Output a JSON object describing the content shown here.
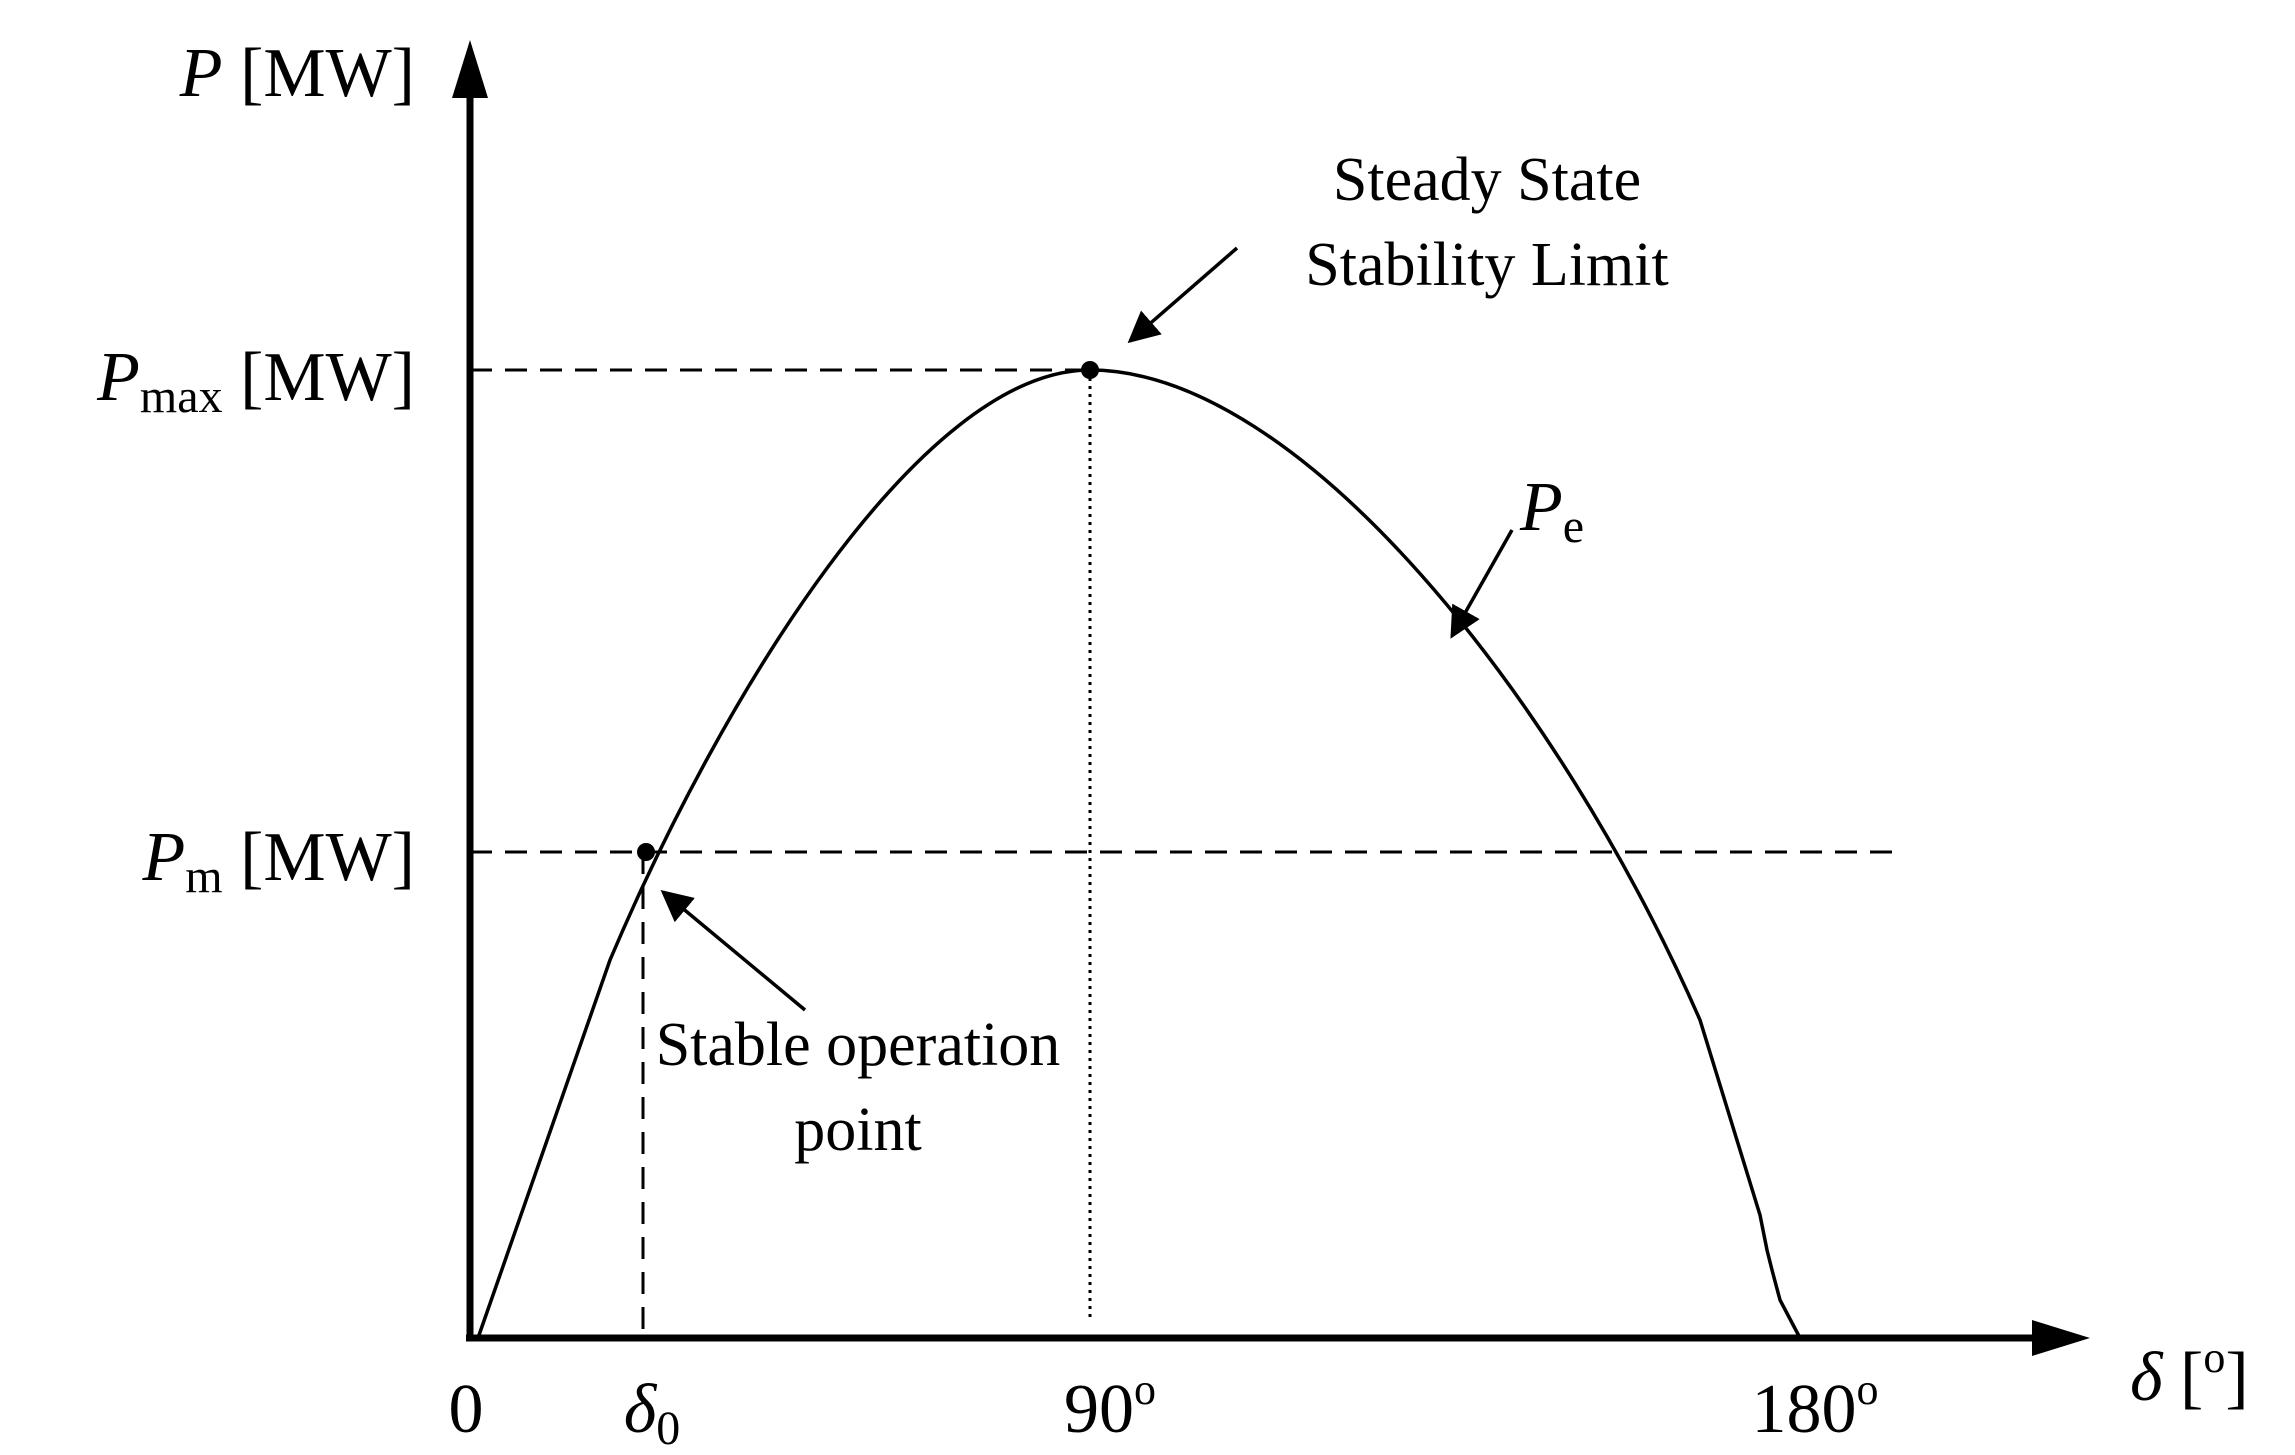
{
  "axes": {
    "y_label_var": "P",
    "y_label_unit": " [MW]",
    "x_label_var": "δ",
    "x_label_unit_open": " [",
    "x_label_unit_sup": "o",
    "x_label_unit_close": "]"
  },
  "levels": {
    "pmax_var": "P",
    "pmax_sub": "max",
    "pmax_unit": " [MW]",
    "pm_var": "P",
    "pm_sub": "m",
    "pm_unit": " [MW]"
  },
  "ticks": {
    "origin": "0",
    "delta0_var": "δ",
    "delta0_sub": "0",
    "t90": "90",
    "t90_sup": "o",
    "t180": "180",
    "t180_sup": "o"
  },
  "curve": {
    "var": "P",
    "sub": "e"
  },
  "annotations": {
    "steady_state_line1": "Steady State",
    "steady_state_line2": "Stability Limit",
    "stable_line1": "Stable operation",
    "stable_line2": "point"
  }
}
